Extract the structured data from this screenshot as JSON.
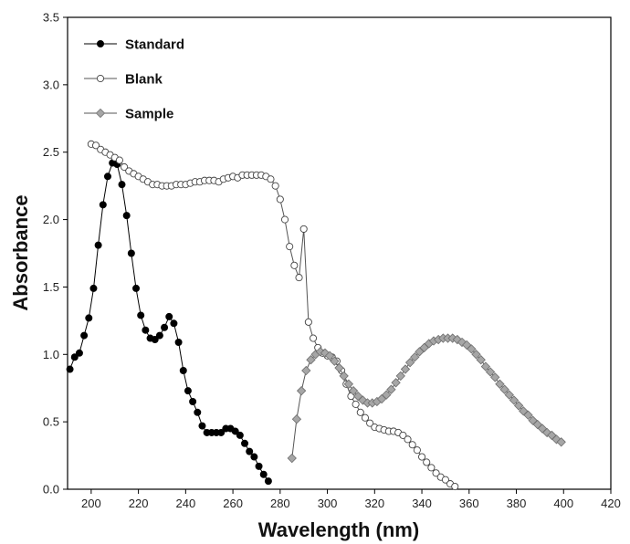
{
  "chart_data": {
    "type": "scatter",
    "xlabel": "Wavelength (nm)",
    "ylabel": "Absorbance",
    "xlim": [
      190,
      420
    ],
    "ylim": [
      0.0,
      3.5
    ],
    "xticks": [
      "200",
      "220",
      "240",
      "260",
      "280",
      "300",
      "320",
      "340",
      "360",
      "380",
      "400",
      "420"
    ],
    "yticks": [
      "0.0",
      "0.5",
      "1.0",
      "1.5",
      "2.0",
      "2.5",
      "3.0",
      "3.5"
    ],
    "grid": false,
    "legend_position": "top-left",
    "series": [
      {
        "name": "Standard",
        "marker": "filled-circle",
        "color": "#000000",
        "points": [
          [
            191,
            0.89
          ],
          [
            193,
            0.98
          ],
          [
            195,
            1.01
          ],
          [
            197,
            1.14
          ],
          [
            199,
            1.27
          ],
          [
            201,
            1.49
          ],
          [
            203,
            1.81
          ],
          [
            205,
            2.11
          ],
          [
            207,
            2.32
          ],
          [
            209,
            2.42
          ],
          [
            211,
            2.41
          ],
          [
            213,
            2.26
          ],
          [
            215,
            2.03
          ],
          [
            217,
            1.75
          ],
          [
            219,
            1.49
          ],
          [
            221,
            1.29
          ],
          [
            223,
            1.18
          ],
          [
            225,
            1.12
          ],
          [
            227,
            1.11
          ],
          [
            229,
            1.14
          ],
          [
            231,
            1.2
          ],
          [
            233,
            1.28
          ],
          [
            235,
            1.23
          ],
          [
            237,
            1.09
          ],
          [
            239,
            0.88
          ],
          [
            241,
            0.73
          ],
          [
            243,
            0.65
          ],
          [
            245,
            0.57
          ],
          [
            247,
            0.47
          ],
          [
            249,
            0.42
          ],
          [
            251,
            0.42
          ],
          [
            253,
            0.42
          ],
          [
            255,
            0.42
          ],
          [
            257,
            0.45
          ],
          [
            259,
            0.45
          ],
          [
            261,
            0.43
          ],
          [
            263,
            0.4
          ],
          [
            265,
            0.34
          ],
          [
            267,
            0.28
          ],
          [
            269,
            0.24
          ],
          [
            271,
            0.17
          ],
          [
            273,
            0.11
          ],
          [
            275,
            0.06
          ]
        ]
      },
      {
        "name": "Blank",
        "marker": "open-circle",
        "color": "#555555",
        "points": [
          [
            200,
            2.56
          ],
          [
            202,
            2.55
          ],
          [
            204,
            2.52
          ],
          [
            206,
            2.5
          ],
          [
            208,
            2.48
          ],
          [
            210,
            2.46
          ],
          [
            212,
            2.44
          ],
          [
            214,
            2.39
          ],
          [
            216,
            2.36
          ],
          [
            218,
            2.34
          ],
          [
            220,
            2.32
          ],
          [
            222,
            2.3
          ],
          [
            224,
            2.28
          ],
          [
            226,
            2.26
          ],
          [
            228,
            2.26
          ],
          [
            230,
            2.25
          ],
          [
            232,
            2.25
          ],
          [
            234,
            2.25
          ],
          [
            236,
            2.26
          ],
          [
            238,
            2.26
          ],
          [
            240,
            2.26
          ],
          [
            242,
            2.27
          ],
          [
            244,
            2.28
          ],
          [
            246,
            2.28
          ],
          [
            248,
            2.29
          ],
          [
            250,
            2.29
          ],
          [
            252,
            2.29
          ],
          [
            254,
            2.28
          ],
          [
            256,
            2.3
          ],
          [
            258,
            2.31
          ],
          [
            260,
            2.32
          ],
          [
            262,
            2.31
          ],
          [
            264,
            2.33
          ],
          [
            266,
            2.33
          ],
          [
            268,
            2.33
          ],
          [
            270,
            2.33
          ],
          [
            272,
            2.33
          ],
          [
            274,
            2.32
          ],
          [
            276,
            2.3
          ],
          [
            278,
            2.25
          ],
          [
            280,
            2.15
          ],
          [
            282,
            2.0
          ],
          [
            284,
            1.8
          ],
          [
            286,
            1.66
          ],
          [
            288,
            1.57
          ],
          [
            290,
            1.93
          ],
          [
            292,
            1.24
          ],
          [
            294,
            1.12
          ],
          [
            296,
            1.05
          ],
          [
            298,
            1.01
          ],
          [
            300,
            0.99
          ],
          [
            302,
            0.98
          ],
          [
            304,
            0.95
          ],
          [
            306,
            0.88
          ],
          [
            308,
            0.78
          ],
          [
            310,
            0.69
          ],
          [
            312,
            0.63
          ],
          [
            314,
            0.57
          ],
          [
            316,
            0.53
          ],
          [
            318,
            0.49
          ],
          [
            320,
            0.46
          ],
          [
            322,
            0.45
          ],
          [
            324,
            0.44
          ],
          [
            326,
            0.43
          ],
          [
            328,
            0.43
          ],
          [
            330,
            0.42
          ],
          [
            332,
            0.4
          ],
          [
            334,
            0.37
          ],
          [
            336,
            0.33
          ],
          [
            338,
            0.29
          ],
          [
            340,
            0.24
          ],
          [
            342,
            0.2
          ],
          [
            344,
            0.16
          ],
          [
            346,
            0.12
          ],
          [
            348,
            0.09
          ],
          [
            350,
            0.07
          ],
          [
            352,
            0.04
          ],
          [
            354,
            0.02
          ]
        ]
      },
      {
        "name": "Sample",
        "marker": "gray-diamond",
        "color": "#9a9a9a",
        "points": [
          [
            285,
            0.23
          ],
          [
            287,
            0.52
          ],
          [
            289,
            0.73
          ],
          [
            291,
            0.88
          ],
          [
            293,
            0.96
          ],
          [
            295,
            1.0
          ],
          [
            297,
            1.02
          ],
          [
            299,
            1.01
          ],
          [
            301,
            0.99
          ],
          [
            303,
            0.95
          ],
          [
            305,
            0.9
          ],
          [
            307,
            0.84
          ],
          [
            309,
            0.78
          ],
          [
            311,
            0.73
          ],
          [
            313,
            0.69
          ],
          [
            315,
            0.66
          ],
          [
            317,
            0.64
          ],
          [
            319,
            0.64
          ],
          [
            321,
            0.65
          ],
          [
            323,
            0.67
          ],
          [
            325,
            0.7
          ],
          [
            327,
            0.74
          ],
          [
            329,
            0.79
          ],
          [
            331,
            0.84
          ],
          [
            333,
            0.89
          ],
          [
            335,
            0.94
          ],
          [
            337,
            0.98
          ],
          [
            339,
            1.02
          ],
          [
            341,
            1.05
          ],
          [
            343,
            1.08
          ],
          [
            345,
            1.1
          ],
          [
            347,
            1.11
          ],
          [
            349,
            1.12
          ],
          [
            351,
            1.12
          ],
          [
            353,
            1.12
          ],
          [
            355,
            1.11
          ],
          [
            357,
            1.09
          ],
          [
            359,
            1.07
          ],
          [
            361,
            1.04
          ],
          [
            363,
            1.0
          ],
          [
            365,
            0.96
          ],
          [
            367,
            0.91
          ],
          [
            369,
            0.87
          ],
          [
            371,
            0.83
          ],
          [
            373,
            0.78
          ],
          [
            375,
            0.74
          ],
          [
            377,
            0.7
          ],
          [
            379,
            0.66
          ],
          [
            381,
            0.62
          ],
          [
            383,
            0.58
          ],
          [
            385,
            0.55
          ],
          [
            387,
            0.51
          ],
          [
            389,
            0.48
          ],
          [
            391,
            0.45
          ],
          [
            393,
            0.42
          ],
          [
            395,
            0.4
          ],
          [
            397,
            0.37
          ],
          [
            399,
            0.35
          ]
        ]
      }
    ]
  }
}
